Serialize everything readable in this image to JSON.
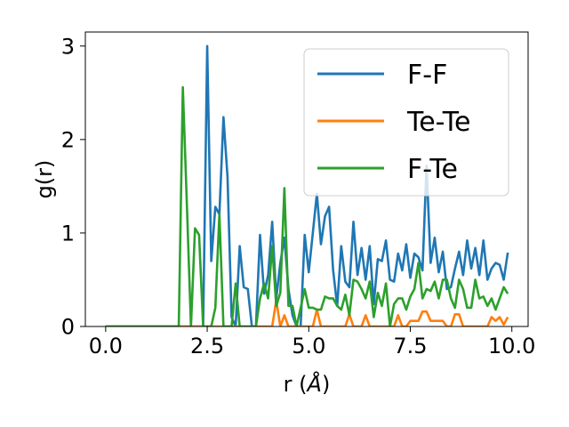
{
  "chart_data": {
    "type": "line",
    "xlabel": "r (",
    "xlabel_unit": "Å",
    "xlabel_close": ")",
    "ylabel": "g(r)",
    "xlim": [
      -0.5,
      10.4
    ],
    "ylim": [
      0,
      3.15
    ],
    "xticks": [
      0.0,
      2.5,
      5.0,
      7.5,
      10.0
    ],
    "xtick_labels": [
      "0.0",
      "2.5",
      "5.0",
      "7.5",
      "10.0"
    ],
    "yticks": [
      0,
      1,
      2,
      3
    ],
    "ytick_labels": [
      "0",
      "1",
      "2",
      "3"
    ],
    "grid": false,
    "legend_position": "top-right",
    "x": [
      0.0,
      0.1,
      0.2,
      0.3,
      0.4,
      0.5,
      0.6,
      0.7,
      0.8,
      0.9,
      1.0,
      1.1,
      1.2,
      1.3,
      1.4,
      1.5,
      1.6,
      1.7,
      1.8,
      1.9,
      2.0,
      2.1,
      2.2,
      2.3,
      2.4,
      2.5,
      2.6,
      2.7,
      2.8,
      2.9,
      3.0,
      3.1,
      3.2,
      3.3,
      3.4,
      3.5,
      3.6,
      3.7,
      3.8,
      3.9,
      4.0,
      4.1,
      4.2,
      4.3,
      4.4,
      4.5,
      4.6,
      4.7,
      4.8,
      4.9,
      5.0,
      5.1,
      5.2,
      5.3,
      5.4,
      5.5,
      5.6,
      5.7,
      5.8,
      5.9,
      6.0,
      6.1,
      6.2,
      6.3,
      6.4,
      6.5,
      6.6,
      6.7,
      6.8,
      6.9,
      7.0,
      7.1,
      7.2,
      7.3,
      7.4,
      7.5,
      7.6,
      7.7,
      7.8,
      7.9,
      8.0,
      8.1,
      8.2,
      8.3,
      8.4,
      8.5,
      8.6,
      8.7,
      8.8,
      8.9,
      9.0,
      9.1,
      9.2,
      9.3,
      9.4,
      9.5,
      9.6,
      9.7,
      9.8,
      9.9
    ],
    "series": [
      {
        "name": "F-F",
        "color": "#1f77b4",
        "values": [
          0,
          0,
          0,
          0,
          0,
          0,
          0,
          0,
          0,
          0,
          0,
          0,
          0,
          0,
          0,
          0,
          0,
          0,
          0,
          0,
          0,
          0,
          0,
          0,
          0,
          3.0,
          0.7,
          1.28,
          1.2,
          2.24,
          1.6,
          0.1,
          0,
          0.86,
          0.42,
          0.4,
          0,
          0,
          0.98,
          0.35,
          0.55,
          1.12,
          0.3,
          0.68,
          0.95,
          0.4,
          0.12,
          0,
          0,
          0.98,
          0.58,
          1.0,
          1.42,
          0.88,
          1.18,
          1.28,
          0.6,
          0.22,
          0.86,
          0.48,
          0.42,
          1.12,
          0.55,
          0.84,
          0.5,
          0.86,
          0.24,
          0.72,
          0.7,
          0.92,
          0.5,
          0.48,
          0.78,
          0.6,
          0.88,
          0.52,
          0.78,
          0.74,
          0.6,
          1.72,
          0.68,
          0.95,
          0.58,
          0.8,
          0.4,
          0.42,
          0.62,
          0.8,
          0.55,
          0.92,
          0.62,
          0.84,
          0.55,
          0.92,
          0.5,
          0.62,
          0.68,
          0.66,
          0.5,
          0.79
        ]
      },
      {
        "name": "Te-Te",
        "color": "#ff7f0e",
        "values": [
          0,
          0,
          0,
          0,
          0,
          0,
          0,
          0,
          0,
          0,
          0,
          0,
          0,
          0,
          0,
          0,
          0,
          0,
          0,
          0,
          0,
          0,
          0,
          0,
          0,
          0,
          0,
          0,
          0,
          0,
          0,
          0,
          0,
          0,
          0,
          0,
          0,
          0,
          0,
          0,
          0,
          0,
          0.28,
          0,
          0.12,
          0,
          0,
          0,
          0,
          0,
          0,
          0,
          0.18,
          0,
          0,
          0,
          0,
          0,
          0,
          0,
          0.13,
          0,
          0,
          0,
          0.12,
          0,
          0,
          0,
          0,
          0,
          0,
          0,
          0.12,
          0,
          0,
          0.06,
          0.06,
          0.06,
          0.16,
          0.16,
          0.06,
          0.06,
          0.06,
          0.06,
          0,
          0,
          0.13,
          0.13,
          0,
          0,
          0,
          0,
          0,
          0,
          0,
          0.1,
          0.06,
          0.1,
          0.02,
          0.1
        ]
      },
      {
        "name": "F-Te",
        "color": "#2ca02c",
        "values": [
          0,
          0,
          0,
          0,
          0,
          0,
          0,
          0,
          0,
          0,
          0,
          0,
          0,
          0,
          0,
          0,
          0,
          0,
          0,
          2.56,
          1.3,
          0,
          1.05,
          0.98,
          0,
          0,
          0,
          0.2,
          1.2,
          0,
          0,
          0,
          0.46,
          0,
          0,
          0,
          0,
          0,
          0.3,
          0.46,
          0.3,
          0.86,
          0.22,
          0.36,
          1.48,
          0.22,
          0.22,
          0,
          0.2,
          0.4,
          0.2,
          0.2,
          0.18,
          0.18,
          0.32,
          0.3,
          0.3,
          0.22,
          0.18,
          0.34,
          0.12,
          0.5,
          0.48,
          0.4,
          0.3,
          0.48,
          0.1,
          0.36,
          0.22,
          0.46,
          0,
          0.24,
          0.3,
          0.3,
          0.18,
          0.32,
          0.4,
          0.68,
          0.3,
          0.4,
          0.38,
          0.48,
          0.3,
          0.5,
          0.5,
          0.3,
          0.2,
          0.5,
          0.4,
          0.2,
          0.2,
          0.5,
          0.3,
          0.32,
          0.22,
          0.3,
          0.18,
          0.3,
          0.42,
          0.35
        ]
      }
    ]
  }
}
